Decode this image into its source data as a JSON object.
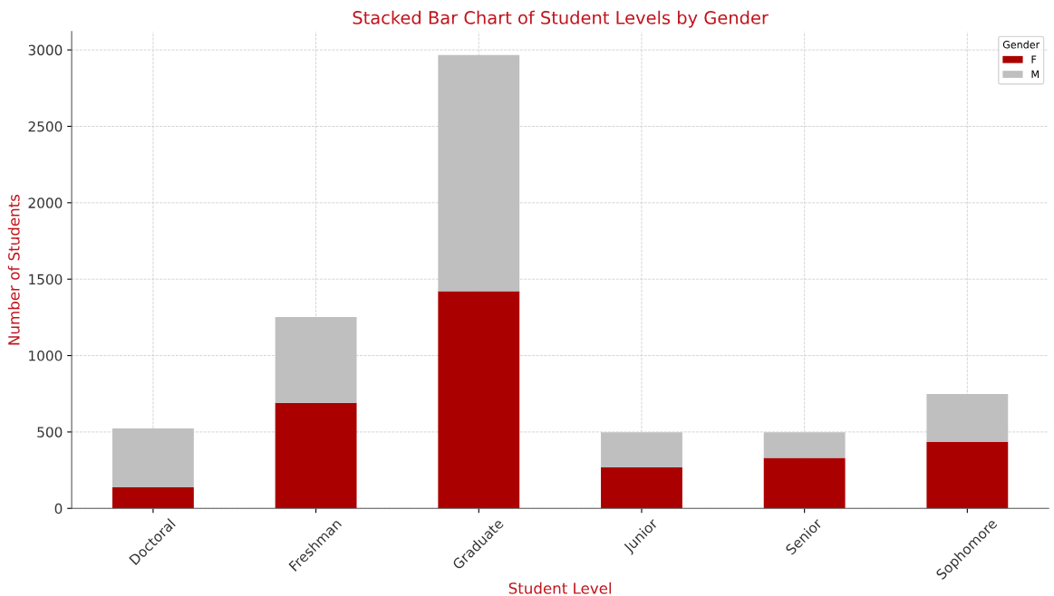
{
  "chart_data": {
    "type": "bar",
    "title": "Stacked Bar Chart of Student Levels by Gender",
    "xlabel": "Student Level",
    "ylabel": "Number of Students",
    "legend_title": "Gender",
    "categories": [
      "Doctoral",
      "Freshman",
      "Graduate",
      "Junior",
      "Senior",
      "Sophomore"
    ],
    "series": [
      {
        "name": "F",
        "color": "#aa0000",
        "values": [
          138,
          690,
          1421,
          268,
          330,
          434
        ]
      },
      {
        "name": "M",
        "color": "#bfbfbf",
        "values": [
          385,
          562,
          1546,
          230,
          168,
          314
        ]
      }
    ],
    "stacked": true,
    "ylim": [
      0,
      3120
    ],
    "yticks": [
      0,
      500,
      1000,
      1500,
      2000,
      2500,
      3000
    ],
    "grid": true,
    "legend": "top right"
  }
}
